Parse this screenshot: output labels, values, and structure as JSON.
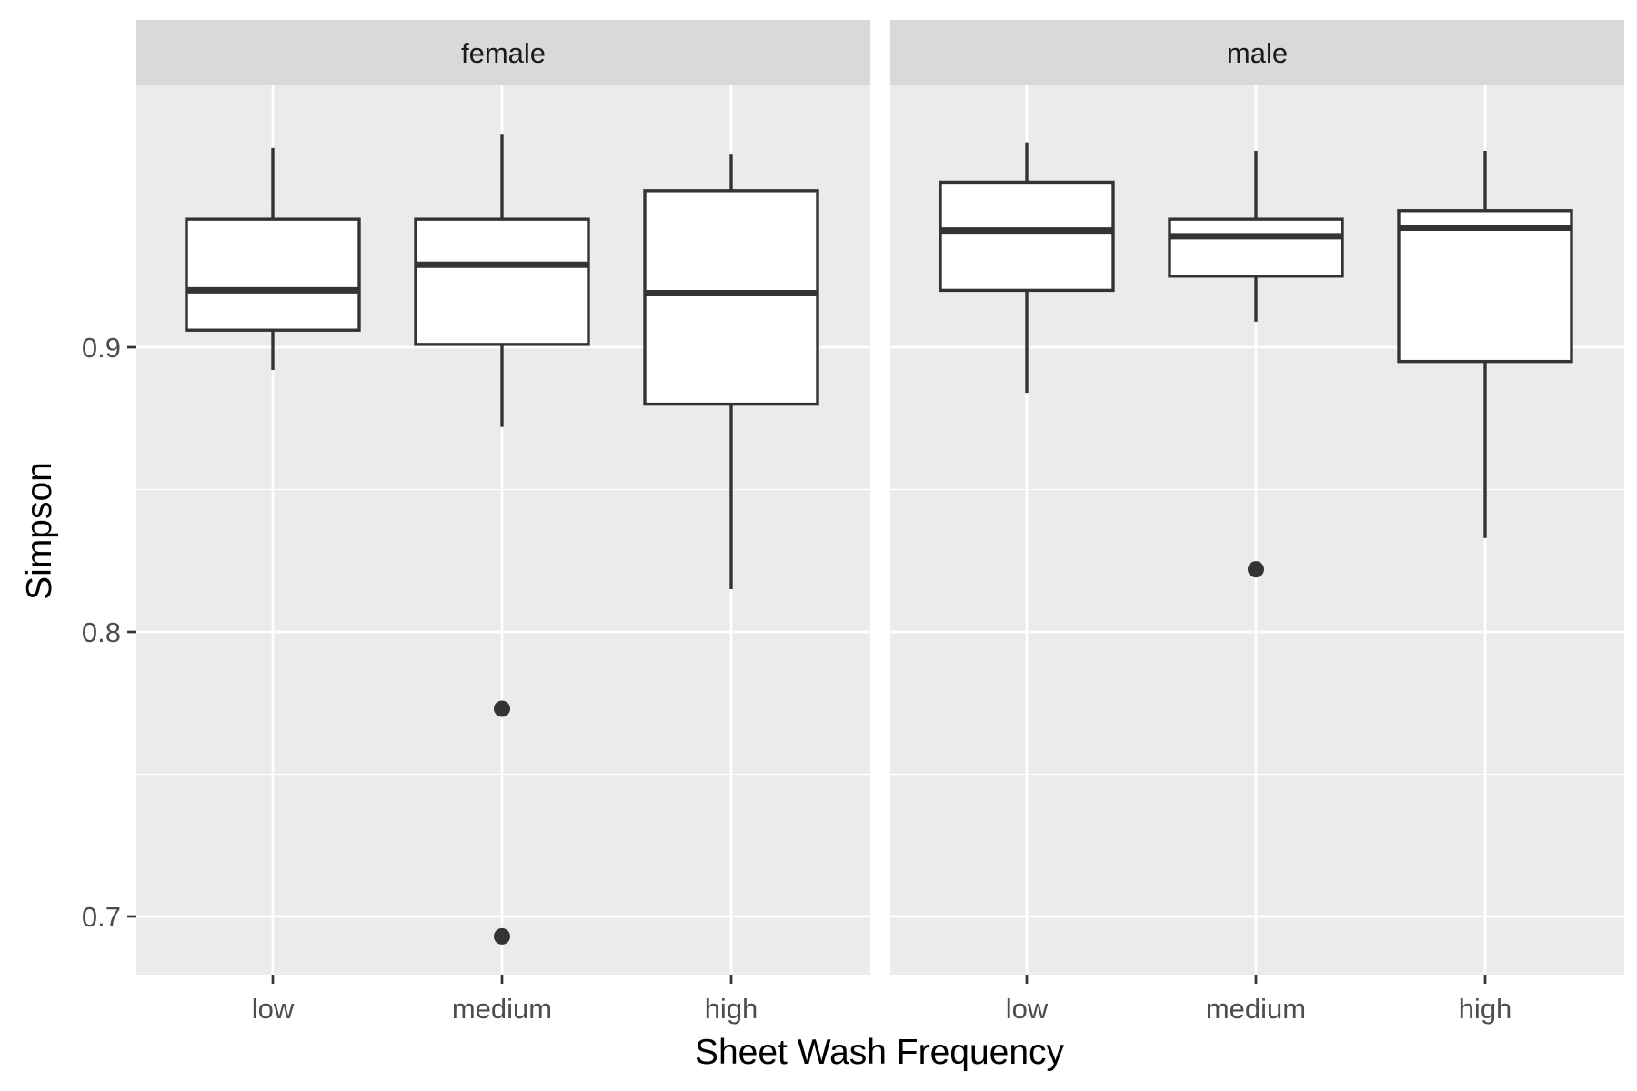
{
  "chart_data": {
    "type": "boxplot",
    "xlabel": "Sheet Wash Frequency",
    "ylabel": "Simpson",
    "categories": [
      "low",
      "medium",
      "high"
    ],
    "yticks": [
      0.7,
      0.8,
      0.9
    ],
    "ytick_labels": [
      "0.7",
      "0.8",
      "0.9"
    ],
    "ylim": [
      0.68,
      0.993
    ],
    "grid": true,
    "colors": {
      "panel_bg": "#ebebeb",
      "strip_bg": "#d9d9d9",
      "grid": "#ffffff",
      "box_fill": "#ffffff",
      "box_line": "#333333"
    },
    "panels": [
      {
        "label": "female",
        "boxes": [
          {
            "category": "low",
            "whisker_low": 0.892,
            "q1": 0.906,
            "median": 0.92,
            "q3": 0.945,
            "whisker_high": 0.97,
            "outliers": []
          },
          {
            "category": "medium",
            "whisker_low": 0.872,
            "q1": 0.901,
            "median": 0.929,
            "q3": 0.945,
            "whisker_high": 0.975,
            "outliers": [
              0.773,
              0.693
            ]
          },
          {
            "category": "high",
            "whisker_low": 0.815,
            "q1": 0.88,
            "median": 0.919,
            "q3": 0.955,
            "whisker_high": 0.968,
            "outliers": []
          }
        ]
      },
      {
        "label": "male",
        "boxes": [
          {
            "category": "low",
            "whisker_low": 0.884,
            "q1": 0.92,
            "median": 0.941,
            "q3": 0.958,
            "whisker_high": 0.972,
            "outliers": []
          },
          {
            "category": "medium",
            "whisker_low": 0.909,
            "q1": 0.925,
            "median": 0.939,
            "q3": 0.945,
            "whisker_high": 0.969,
            "outliers": [
              0.822
            ]
          },
          {
            "category": "high",
            "whisker_low": 0.833,
            "q1": 0.895,
            "median": 0.942,
            "q3": 0.948,
            "whisker_high": 0.969,
            "outliers": []
          }
        ]
      }
    ]
  }
}
